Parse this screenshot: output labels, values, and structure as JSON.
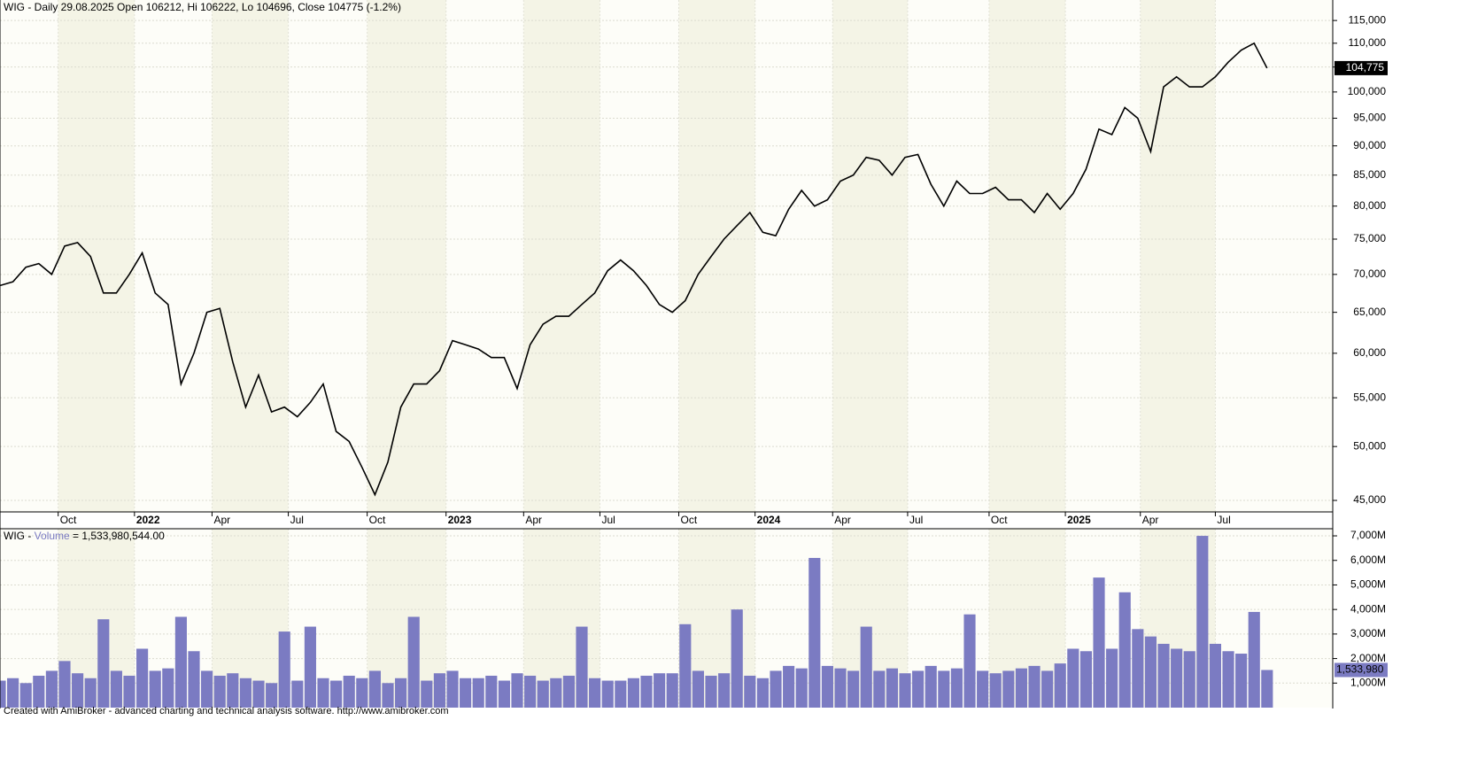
{
  "chart_data": [
    {
      "type": "line",
      "title": "WIG - Daily 29.08.2025 Open 106212, Hi 106222, Lo 104696, Close 104775 (-1.2%)",
      "log_scale": true,
      "grid": true,
      "last_label": "104,775",
      "xlim": [
        0,
        103.08
      ],
      "ylim": [
        44000,
        119700
      ],
      "xticks": [
        {
          "value": 4.5,
          "label": "Oct"
        },
        {
          "value": 10.4,
          "label": "2022"
        },
        {
          "value": 16.4,
          "label": "Apr"
        },
        {
          "value": 22.3,
          "label": "Jul"
        },
        {
          "value": 28.4,
          "label": "Oct"
        },
        {
          "value": 34.5,
          "label": "2023"
        },
        {
          "value": 40.5,
          "label": "Apr"
        },
        {
          "value": 46.4,
          "label": "Jul"
        },
        {
          "value": 52.5,
          "label": "Oct"
        },
        {
          "value": 58.4,
          "label": "2024"
        },
        {
          "value": 64.4,
          "label": "Apr"
        },
        {
          "value": 70.2,
          "label": "Jul"
        },
        {
          "value": 76.5,
          "label": "Oct"
        },
        {
          "value": 82.4,
          "label": "2025"
        },
        {
          "value": 88.2,
          "label": "Apr"
        },
        {
          "value": 94.0,
          "label": "Jul"
        }
      ],
      "yticks": [
        {
          "value": 45000,
          "label": "45,000"
        },
        {
          "value": 50000,
          "label": "50,000"
        },
        {
          "value": 55000,
          "label": "55,000"
        },
        {
          "value": 60000,
          "label": "60,000"
        },
        {
          "value": 65000,
          "label": "65,000"
        },
        {
          "value": 70000,
          "label": "70,000"
        },
        {
          "value": 75000,
          "label": "75,000"
        },
        {
          "value": 80000,
          "label": "80,000"
        },
        {
          "value": 85000,
          "label": "85,000"
        },
        {
          "value": 90000,
          "label": "90,000"
        },
        {
          "value": 95000,
          "label": "95,000"
        },
        {
          "value": 100000,
          "label": "100,000"
        },
        {
          "value": 105000,
          "label": "105,000"
        },
        {
          "value": 110000,
          "label": "110,000"
        },
        {
          "value": 115000,
          "label": "115,000"
        }
      ],
      "series": [
        {
          "name": "WIG",
          "color": "#000000",
          "values": [
            68500,
            69000,
            71000,
            71500,
            70000,
            74000,
            74500,
            72500,
            67500,
            67500,
            70000,
            73000,
            67500,
            66000,
            56500,
            60000,
            65000,
            65500,
            59000,
            54000,
            57500,
            53500,
            54000,
            53000,
            54500,
            56500,
            51500,
            50500,
            48000,
            45500,
            48500,
            54000,
            56500,
            56500,
            58000,
            61500,
            61000,
            60500,
            59500,
            59500,
            56000,
            61000,
            63500,
            64500,
            64500,
            66000,
            67500,
            70500,
            72000,
            70500,
            68500,
            66000,
            65000,
            66500,
            70000,
            72500,
            75000,
            77000,
            79000,
            76000,
            75500,
            79500,
            82500,
            80000,
            81000,
            84000,
            85000,
            88000,
            87500,
            85000,
            88000,
            88500,
            83500,
            80000,
            84000,
            82000,
            82000,
            83000,
            81000,
            81000,
            79000,
            82000,
            79500,
            82000,
            86000,
            93000,
            92000,
            97000,
            95000,
            89000,
            101000,
            103000,
            101000,
            101000,
            103000,
            106000,
            108500,
            110000,
            104775
          ]
        }
      ]
    },
    {
      "type": "bar",
      "title_parts": [
        "WIG - ",
        "Volume",
        " = 1,533,980,544.00"
      ],
      "last_label": "1,533,980",
      "xlim": [
        0,
        103.08
      ],
      "ylim": [
        0,
        7290000000
      ],
      "yticks": [
        {
          "value": 1000000000,
          "label": "1,000M"
        },
        {
          "value": 2000000000,
          "label": "2,000M"
        },
        {
          "value": 3000000000,
          "label": "3,000M"
        },
        {
          "value": 4000000000,
          "label": "4,000M"
        },
        {
          "value": 5000000000,
          "label": "5,000M"
        },
        {
          "value": 6000000000,
          "label": "6,000M"
        },
        {
          "value": 7000000000,
          "label": "7,000M"
        }
      ],
      "series": [
        {
          "name": "Volume",
          "color": "#7b7bc2",
          "values": [
            1100000000,
            1200000000,
            1000000000,
            1300000000,
            1500000000,
            1900000000,
            1400000000,
            1200000000,
            3600000000,
            1500000000,
            1300000000,
            2400000000,
            1500000000,
            1600000000,
            3700000000,
            2300000000,
            1500000000,
            1300000000,
            1400000000,
            1200000000,
            1100000000,
            1000000000,
            3100000000,
            1100000000,
            3300000000,
            1200000000,
            1100000000,
            1300000000,
            1200000000,
            1500000000,
            1000000000,
            1200000000,
            3700000000,
            1100000000,
            1400000000,
            1500000000,
            1200000000,
            1200000000,
            1300000000,
            1100000000,
            1400000000,
            1300000000,
            1100000000,
            1200000000,
            1300000000,
            3300000000,
            1200000000,
            1100000000,
            1100000000,
            1200000000,
            1300000000,
            1400000000,
            1400000000,
            3400000000,
            1500000000,
            1300000000,
            1400000000,
            4000000000,
            1300000000,
            1200000000,
            1500000000,
            1700000000,
            1600000000,
            6100000000,
            1700000000,
            1600000000,
            1500000000,
            3300000000,
            1500000000,
            1600000000,
            1400000000,
            1500000000,
            1700000000,
            1500000000,
            1600000000,
            3800000000,
            1500000000,
            1400000000,
            1500000000,
            1600000000,
            1700000000,
            1500000000,
            1800000000,
            2400000000,
            2300000000,
            5300000000,
            2400000000,
            4700000000,
            3200000000,
            2900000000,
            2600000000,
            2400000000,
            2300000000,
            7000000000,
            2600000000,
            2300000000,
            2200000000,
            3900000000,
            1533980544
          ]
        }
      ]
    }
  ],
  "footer": "Created with AmiBroker - advanced charting and technical analysis software. http://www.amibroker.com"
}
